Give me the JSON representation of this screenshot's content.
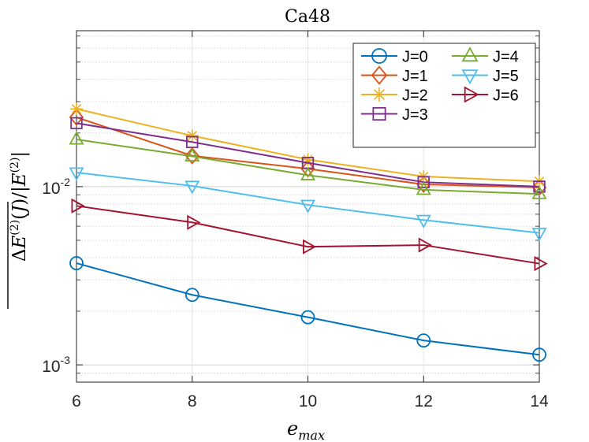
{
  "chart_data": {
    "type": "line",
    "title": "Ca48",
    "xlabel": "e_max",
    "ylabel": "ΔE(2)(J) / |E(2)|",
    "x": [
      6,
      8,
      10,
      12,
      14
    ],
    "xticks": [
      "6",
      "8",
      "10",
      "12",
      "14"
    ],
    "xlim": [
      6,
      14
    ],
    "yscale": "log",
    "ylim": [
      0.0008,
      0.075
    ],
    "yticks": [
      {
        "value": 0.001,
        "base": "10",
        "exp": "-3"
      },
      {
        "value": 0.01,
        "base": "10",
        "exp": "-2"
      }
    ],
    "grid": true,
    "legend_position": "top-right",
    "series": [
      {
        "name": "J=0",
        "marker": "circle",
        "color": "#0072BD",
        "values": [
          0.00372,
          0.00247,
          0.00185,
          0.00137,
          0.00114
        ]
      },
      {
        "name": "J=1",
        "marker": "diamond",
        "color": "#D95319",
        "values": [
          0.0245,
          0.0149,
          0.0126,
          0.0103,
          0.0099
        ]
      },
      {
        "name": "J=2",
        "marker": "asterisk",
        "color": "#EDB120",
        "values": [
          0.0273,
          0.0193,
          0.0142,
          0.0114,
          0.0107
        ]
      },
      {
        "name": "J=3",
        "marker": "square",
        "color": "#7E2F8E",
        "values": [
          0.0227,
          0.0178,
          0.0136,
          0.0106,
          0.01
        ]
      },
      {
        "name": "J=4",
        "marker": "triangle-up",
        "color": "#77AC30",
        "values": [
          0.0184,
          0.0148,
          0.0116,
          0.0096,
          0.0091
        ]
      },
      {
        "name": "J=5",
        "marker": "triangle-down",
        "color": "#4DBEEE",
        "values": [
          0.012,
          0.0101,
          0.0079,
          0.0065,
          0.0055
        ]
      },
      {
        "name": "J=6",
        "marker": "triangle-right",
        "color": "#A2142F",
        "values": [
          0.0078,
          0.0063,
          0.0046,
          0.0047,
          0.0037
        ]
      }
    ]
  }
}
